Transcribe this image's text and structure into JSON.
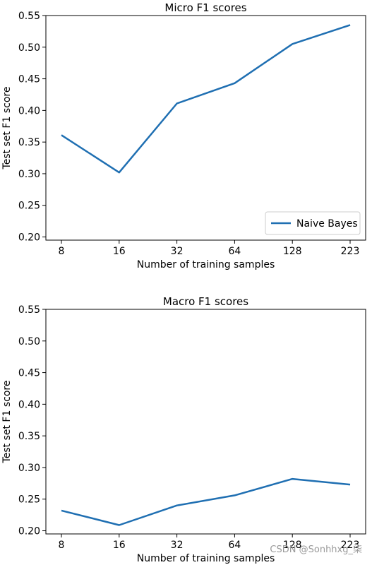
{
  "chart_data": [
    {
      "type": "line",
      "title": "Micro F1 scores",
      "xlabel": "Number of training samples",
      "ylabel": "Test set F1 score",
      "categories": [
        "8",
        "16",
        "32",
        "64",
        "128",
        "223"
      ],
      "ylim": [
        0.195,
        0.55
      ],
      "yticks": [
        "0.20",
        "0.25",
        "0.30",
        "0.35",
        "0.40",
        "0.45",
        "0.50",
        "0.55"
      ],
      "grid": false,
      "legend": "lower right",
      "series": [
        {
          "name": "Naive Bayes",
          "color": "#1f6fb2",
          "values": [
            0.361,
            0.302,
            0.411,
            0.443,
            0.505,
            0.535
          ]
        }
      ]
    },
    {
      "type": "line",
      "title": "Macro F1 scores",
      "xlabel": "Number of training samples",
      "ylabel": "Test set F1 score",
      "categories": [
        "8",
        "16",
        "32",
        "64",
        "128",
        "223"
      ],
      "ylim": [
        0.195,
        0.55
      ],
      "yticks": [
        "0.20",
        "0.25",
        "0.30",
        "0.35",
        "0.40",
        "0.45",
        "0.50",
        "0.55"
      ],
      "grid": false,
      "legend": "none",
      "series": [
        {
          "color": "#1f6fb2",
          "values": [
            0.232,
            0.209,
            0.24,
            0.256,
            0.282,
            0.273
          ]
        }
      ]
    }
  ],
  "watermark": "CSDN @Sonhhxg_柒"
}
